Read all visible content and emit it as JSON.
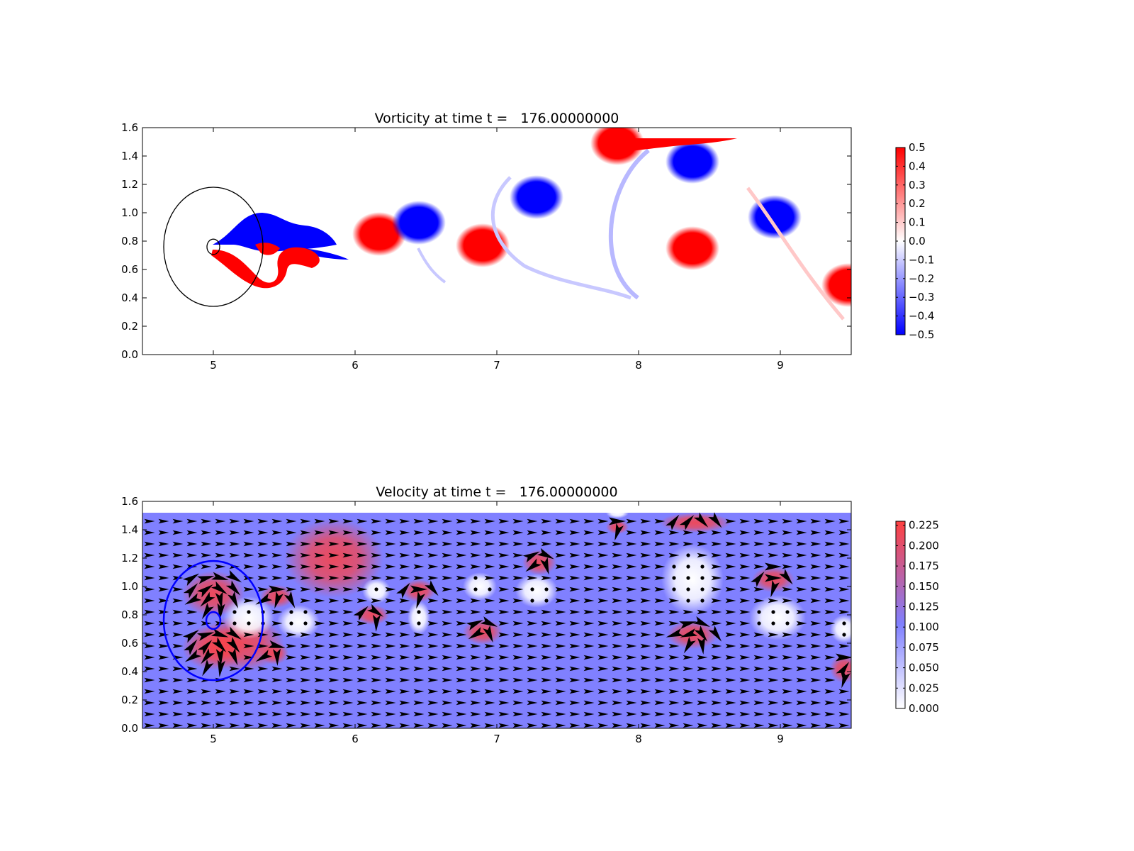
{
  "figure": {
    "background": "#ffffff"
  },
  "chart_data": [
    {
      "type": "heatmap",
      "title": "Vorticity at time t =   176.00000000",
      "xlabel": "",
      "ylabel": "",
      "xlim": [
        4.5,
        9.5
      ],
      "ylim": [
        0.0,
        1.6
      ],
      "xticks": [
        "5",
        "6",
        "7",
        "8",
        "9"
      ],
      "xtick_values": [
        5,
        6,
        7,
        8,
        9
      ],
      "yticks": [
        "0.0",
        "0.2",
        "0.4",
        "0.6",
        "0.8",
        "1.0",
        "1.2",
        "1.4",
        "1.6"
      ],
      "ytick_values": [
        0.0,
        0.2,
        0.4,
        0.6,
        0.8,
        1.0,
        1.2,
        1.4,
        1.6
      ],
      "grid": false,
      "colormap": "bwr",
      "colors": {
        "positive": "#ff0000",
        "zero": "#ffffff",
        "negative": "#0000ff"
      },
      "colorbar": {
        "vmin": -0.5,
        "vmax": 0.5,
        "ticks": [
          "0.5",
          "0.4",
          "0.3",
          "0.2",
          "0.1",
          "0.0",
          "−0.1",
          "−0.2",
          "−0.3",
          "−0.4",
          "−0.5"
        ],
        "tick_values": [
          0.5,
          0.4,
          0.3,
          0.2,
          0.1,
          0.0,
          -0.1,
          -0.2,
          -0.3,
          -0.4,
          -0.5
        ]
      },
      "domain_top": 1.52,
      "vortices": [
        {
          "x": 6.17,
          "y": 0.85,
          "sign": 1
        },
        {
          "x": 6.45,
          "y": 0.93,
          "sign": -1
        },
        {
          "x": 6.9,
          "y": 0.77,
          "sign": 1
        },
        {
          "x": 7.28,
          "y": 1.11,
          "sign": -1
        },
        {
          "x": 7.85,
          "y": 1.49,
          "sign": 1
        },
        {
          "x": 8.38,
          "y": 1.36,
          "sign": -1
        },
        {
          "x": 8.38,
          "y": 0.75,
          "sign": 1
        },
        {
          "x": 8.96,
          "y": 0.97,
          "sign": -1
        },
        {
          "x": 9.48,
          "y": 0.49,
          "sign": 1
        }
      ],
      "outer_circle": {
        "x": 5.0,
        "y": 0.76,
        "r": 0.35,
        "color": "#000000"
      },
      "inner_circle": {
        "x": 5.0,
        "y": 0.76,
        "r": 0.045,
        "color": "#000000"
      }
    },
    {
      "type": "heatmap",
      "title": "Velocity at time t =   176.00000000",
      "xlabel": "",
      "ylabel": "",
      "xlim": [
        4.5,
        9.5
      ],
      "ylim": [
        0.0,
        1.6
      ],
      "xticks": [
        "5",
        "6",
        "7",
        "8",
        "9"
      ],
      "xtick_values": [
        5,
        6,
        7,
        8,
        9
      ],
      "yticks": [
        "0.0",
        "0.2",
        "0.4",
        "0.6",
        "0.8",
        "1.0",
        "1.2",
        "1.4",
        "1.6"
      ],
      "ytick_values": [
        0.0,
        0.2,
        0.4,
        0.6,
        0.8,
        1.0,
        1.2,
        1.4,
        1.6
      ],
      "grid": false,
      "colormap": "white-blue-red",
      "colors": {
        "low": "#ffffff",
        "mid": "#8080ff",
        "high": "#ff4040",
        "arrow": "#000000"
      },
      "colorbar": {
        "vmin": 0.0,
        "vmax": 0.23,
        "ticks": [
          "0.225",
          "0.200",
          "0.175",
          "0.150",
          "0.125",
          "0.100",
          "0.075",
          "0.050",
          "0.025",
          "0.000"
        ],
        "tick_values": [
          0.225,
          0.2,
          0.175,
          0.15,
          0.125,
          0.1,
          0.075,
          0.05,
          0.025,
          0.0
        ]
      },
      "domain_top": 1.52,
      "background_speed": 0.1,
      "quiver": {
        "spacing_x": 0.1,
        "spacing_y": 0.08,
        "y0": 0.02
      },
      "slow_regions": [
        {
          "x": 5.25,
          "y": 0.78,
          "rx": 0.18,
          "ry": 0.15
        },
        {
          "x": 5.6,
          "y": 0.75,
          "rx": 0.15,
          "ry": 0.12
        },
        {
          "x": 6.15,
          "y": 0.97,
          "rx": 0.1,
          "ry": 0.09
        },
        {
          "x": 6.45,
          "y": 0.78,
          "rx": 0.08,
          "ry": 0.12
        },
        {
          "x": 6.88,
          "y": 1.0,
          "rx": 0.12,
          "ry": 0.1
        },
        {
          "x": 7.28,
          "y": 0.97,
          "rx": 0.15,
          "ry": 0.12
        },
        {
          "x": 8.38,
          "y": 1.05,
          "rx": 0.22,
          "ry": 0.25
        },
        {
          "x": 8.98,
          "y": 0.78,
          "rx": 0.2,
          "ry": 0.16
        },
        {
          "x": 9.45,
          "y": 0.7,
          "rx": 0.1,
          "ry": 0.1
        },
        {
          "x": 7.85,
          "y": 1.52,
          "rx": 0.08,
          "ry": 0.04
        }
      ],
      "fast_regions": [
        {
          "x": 5.0,
          "y": 0.95,
          "rx": 0.22,
          "ry": 0.16
        },
        {
          "x": 5.0,
          "y": 0.57,
          "rx": 0.22,
          "ry": 0.16
        },
        {
          "x": 5.45,
          "y": 0.93,
          "rx": 0.12,
          "ry": 0.08
        },
        {
          "x": 5.43,
          "y": 0.53,
          "rx": 0.1,
          "ry": 0.08
        },
        {
          "x": 6.12,
          "y": 0.8,
          "rx": 0.12,
          "ry": 0.07
        },
        {
          "x": 6.45,
          "y": 0.97,
          "rx": 0.12,
          "ry": 0.08
        },
        {
          "x": 6.9,
          "y": 0.68,
          "rx": 0.14,
          "ry": 0.09
        },
        {
          "x": 7.3,
          "y": 1.17,
          "rx": 0.12,
          "ry": 0.09
        },
        {
          "x": 8.4,
          "y": 1.45,
          "rx": 0.25,
          "ry": 0.07
        },
        {
          "x": 7.85,
          "y": 1.42,
          "rx": 0.08,
          "ry": 0.05
        },
        {
          "x": 8.38,
          "y": 0.66,
          "rx": 0.18,
          "ry": 0.1
        },
        {
          "x": 8.95,
          "y": 1.05,
          "rx": 0.15,
          "ry": 0.09
        },
        {
          "x": 9.45,
          "y": 0.42,
          "rx": 0.1,
          "ry": 0.1
        },
        {
          "x": 5.85,
          "y": 1.2,
          "rx": 0.35,
          "ry": 0.28
        },
        {
          "x": 5.2,
          "y": 0.6,
          "rx": 0.3,
          "ry": 0.2
        }
      ],
      "outer_circle": {
        "x": 5.0,
        "y": 0.76,
        "r": 0.35,
        "color": "#0000ff"
      },
      "inner_circle": {
        "x": 5.0,
        "y": 0.76,
        "r": 0.05,
        "color": "#0000ff"
      }
    }
  ]
}
